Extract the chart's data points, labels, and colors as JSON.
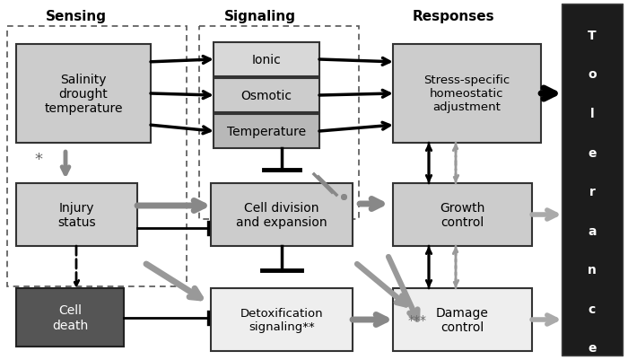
{
  "bg_color": "#ffffff",
  "sensing_label": "Sensing",
  "signaling_label": "Signaling",
  "responses_label": "Responses",
  "tolerance_text": "Tolerance"
}
